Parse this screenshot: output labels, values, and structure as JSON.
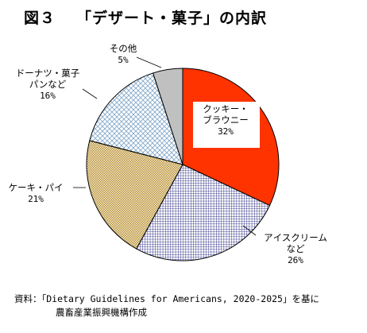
{
  "figure": {
    "number": "図３",
    "title": "「デザート・菓子」の内訳"
  },
  "chart_data": {
    "type": "pie",
    "title": "「デザート・菓子」の内訳",
    "start_angle_deg": 0,
    "direction": "clockwise",
    "slices": [
      {
        "label_lines": [
          "クッキー・",
          "ブラウニー"
        ],
        "value": 32,
        "display": "32%",
        "fill": "#ff3300",
        "pattern": "solid"
      },
      {
        "label_lines": [
          "アイスクリーム",
          "など"
        ],
        "value": 26,
        "display": "26%",
        "fill": "#3b3b8c",
        "pattern": "grid"
      },
      {
        "label_lines": [
          "ケーキ・パイ"
        ],
        "value": 21,
        "display": "21%",
        "fill": "#c8a24a",
        "pattern": "dots"
      },
      {
        "label_lines": [
          "ドーナツ・菓子",
          "パンなど"
        ],
        "value": 16,
        "display": "16%",
        "fill": "#7fa6c8",
        "pattern": "lattice"
      },
      {
        "label_lines": [
          "その他"
        ],
        "value": 5,
        "display": "5%",
        "fill": "#c0c0c0",
        "pattern": "solid"
      }
    ],
    "outline_color": "#000000"
  },
  "source": {
    "line1": "資料：「Dietary Guidelines for Americans, 2020-2025」を基に",
    "line2": "農畜産業振興機構作成"
  }
}
